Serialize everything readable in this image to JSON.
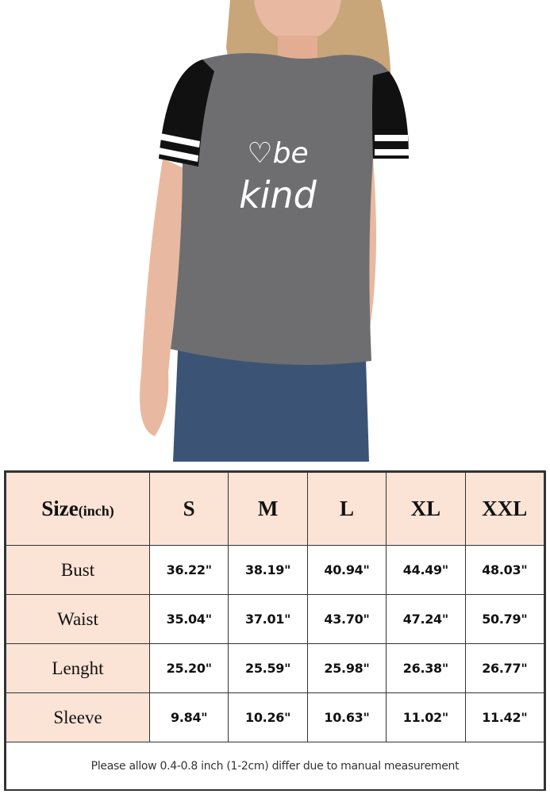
{
  "photo": {
    "subject": "model wearing grey raglan t-shirt with black striped sleeves and jeans",
    "shirt_print": "be kind",
    "colors": {
      "shirt": "#6e6e70",
      "sleeves": "#111111",
      "jeans": "#3b5475",
      "background": "#ffffff"
    }
  },
  "size_chart": {
    "header_label": "Size",
    "header_unit": "(inch)",
    "sizes": [
      "S",
      "M",
      "L",
      "XL",
      "XXL"
    ],
    "rows": [
      {
        "label": "Bust",
        "values": [
          "36.22\"",
          "38.19\"",
          "40.94\"",
          "44.49\"",
          "48.03\""
        ]
      },
      {
        "label": "Waist",
        "values": [
          "35.04\"",
          "37.01\"",
          "43.70\"",
          "47.24\"",
          "50.79\""
        ]
      },
      {
        "label": "Lenght",
        "values": [
          "25.20\"",
          "25.59\"",
          "25.98\"",
          "26.38\"",
          "26.77\""
        ]
      },
      {
        "label": "Sleeve",
        "values": [
          "9.84\"",
          "10.26\"",
          "10.63\"",
          "11.02\"",
          "11.42\""
        ]
      }
    ],
    "note": "Please allow 0.4-0.8 inch (1-2cm) differ due to manual measurement",
    "header_color": "#fbe3d6"
  }
}
